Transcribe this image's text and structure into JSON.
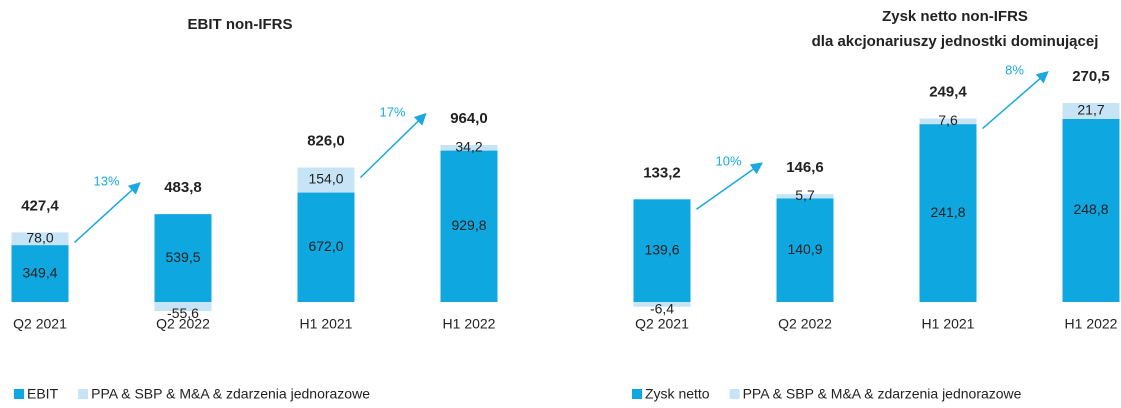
{
  "chart_data": [
    {
      "type": "bar",
      "stacked": true,
      "title": "EBIT non-IFRS",
      "categories": [
        "Q2 2021",
        "Q2 2022",
        "H1 2021",
        "H1 2022"
      ],
      "series": [
        {
          "name": "EBIT",
          "color": "#0ea7df",
          "values": [
            349.4,
            539.5,
            672.0,
            929.8
          ],
          "value_labels": [
            "349,4",
            "539,5",
            "672,0",
            "929,8"
          ]
        },
        {
          "name": "PPA & SBP & M&A & zdarzenia jednorazowe",
          "color": "#c6e4f6",
          "values": [
            78.0,
            -55.6,
            154.0,
            34.2
          ],
          "value_labels": [
            "78,0",
            "-55,6",
            "154,0",
            "34,2"
          ]
        }
      ],
      "totals": [
        427.4,
        483.8,
        826.0,
        964.0
      ],
      "total_labels": [
        "427,4",
        "483,8",
        "826,0",
        "964,0"
      ],
      "annotations": [
        "13%",
        "17%"
      ]
    },
    {
      "type": "bar",
      "stacked": true,
      "title": "Zysk netto non-IFRS",
      "subtitle": "dla akcjonariuszy jednostki dominującej",
      "categories": [
        "Q2 2021",
        "Q2 2022",
        "H1 2021",
        "H1 2022"
      ],
      "series": [
        {
          "name": "Zysk netto",
          "color": "#0ea7df",
          "values": [
            139.6,
            140.9,
            241.8,
            248.8
          ],
          "value_labels": [
            "139,6",
            "140,9",
            "241,8",
            "248,8"
          ]
        },
        {
          "name": "PPA & SBP & M&A & zdarzenia jednorazowe",
          "color": "#c6e4f6",
          "values": [
            -6.4,
            5.7,
            7.6,
            21.7
          ],
          "value_labels": [
            "-6,4",
            "5,7",
            "7,6",
            "21,7"
          ]
        }
      ],
      "totals": [
        133.2,
        146.6,
        249.4,
        270.5
      ],
      "total_labels": [
        "133,2",
        "146,6",
        "249,4",
        "270,5"
      ],
      "annotations": [
        "10%",
        "8%"
      ]
    }
  ]
}
